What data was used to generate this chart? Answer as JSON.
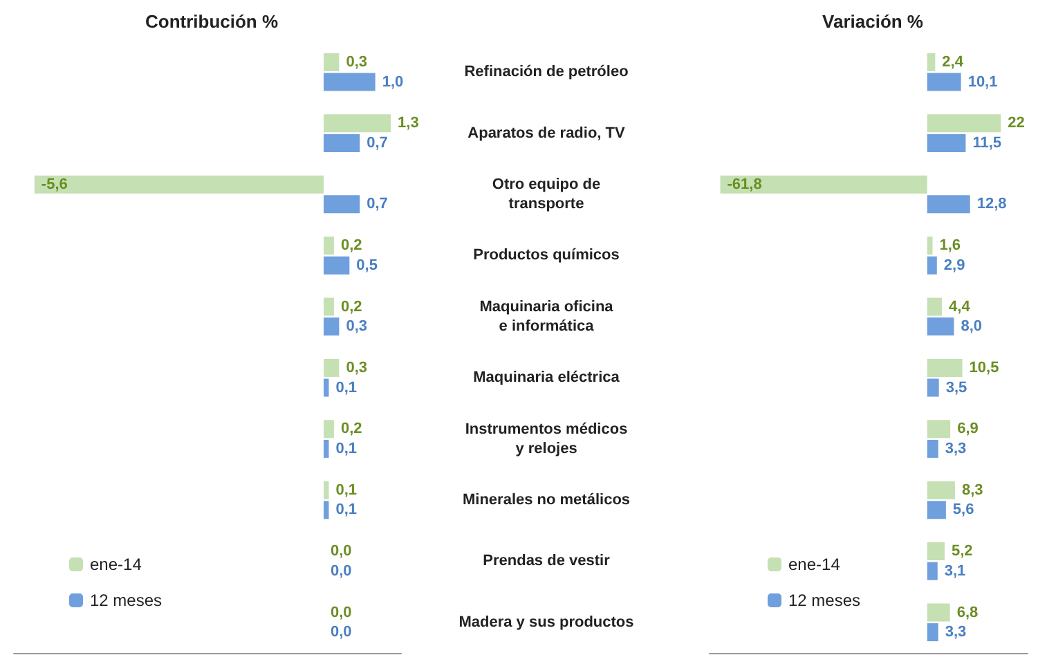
{
  "chart_data": [
    {
      "type": "bar",
      "orientation": "horizontal",
      "title": "Contribución %",
      "categories": [
        "Refinación de petróleo",
        "Aparatos de radio, TV",
        "Otro equipo de\ntransporte",
        "Productos químicos",
        "Maquinaria oficina\ne informática",
        "Maquinaria eléctrica",
        "Instrumentos médicos\ny relojes",
        "Minerales no metálicos",
        "Prendas de vestir",
        "Madera y sus productos"
      ],
      "xlim": [
        -6,
        1.5
      ],
      "tick_labels": "y",
      "legend": "bottom left",
      "grid": false,
      "series": [
        {
          "name": "ene-14",
          "color": "#c5e0b3",
          "values": [
            0.3,
            1.3,
            -5.6,
            0.2,
            0.2,
            0.3,
            0.2,
            0.1,
            0.0,
            0.0
          ],
          "value_labels": [
            "0,3",
            "1,3",
            "-5,6",
            "0,2",
            "0,2",
            "0,3",
            "0,2",
            "0,1",
            "0,0",
            "0,0"
          ]
        },
        {
          "name": "12 meses",
          "color": "#6f9fdc",
          "values": [
            1.0,
            0.7,
            0.7,
            0.5,
            0.3,
            0.1,
            0.1,
            0.1,
            0.0,
            0.0
          ],
          "value_labels": [
            "1,0",
            "0,7",
            "0,7",
            "0,5",
            "0,3",
            "0,1",
            "0,1",
            "0,1",
            "0,0",
            "0,0"
          ]
        }
      ]
    },
    {
      "type": "bar",
      "orientation": "horizontal",
      "title": "Variación %",
      "categories": [
        null,
        null,
        null,
        null,
        null,
        null,
        null,
        null,
        null,
        null
      ],
      "xlim": [
        -65,
        30
      ],
      "tick_labels": false,
      "legend": "bottom left",
      "grid": false,
      "series": [
        {
          "name": "ene-14",
          "color": "#c5e0b3",
          "values": [
            2.4,
            22,
            -61.8,
            1.6,
            4.4,
            10.5,
            6.9,
            8.3,
            5.2,
            6.8
          ],
          "value_labels": [
            "2,4",
            "22",
            "-61,8",
            "1,6",
            "4,4",
            "10,5",
            "6,9",
            "8,3",
            "5,2",
            "6,8"
          ]
        },
        {
          "name": "12 meses",
          "color": "#6f9fdc",
          "values": [
            10.1,
            11.5,
            12.8,
            2.9,
            8.0,
            3.5,
            3.3,
            5.6,
            3.1,
            3.3
          ],
          "value_labels": [
            "10,1",
            "11,5",
            "12,8",
            "2,9",
            "8,0",
            "3,5",
            "3,3",
            "5,6",
            "3,1",
            "3,3"
          ]
        }
      ]
    }
  ]
}
